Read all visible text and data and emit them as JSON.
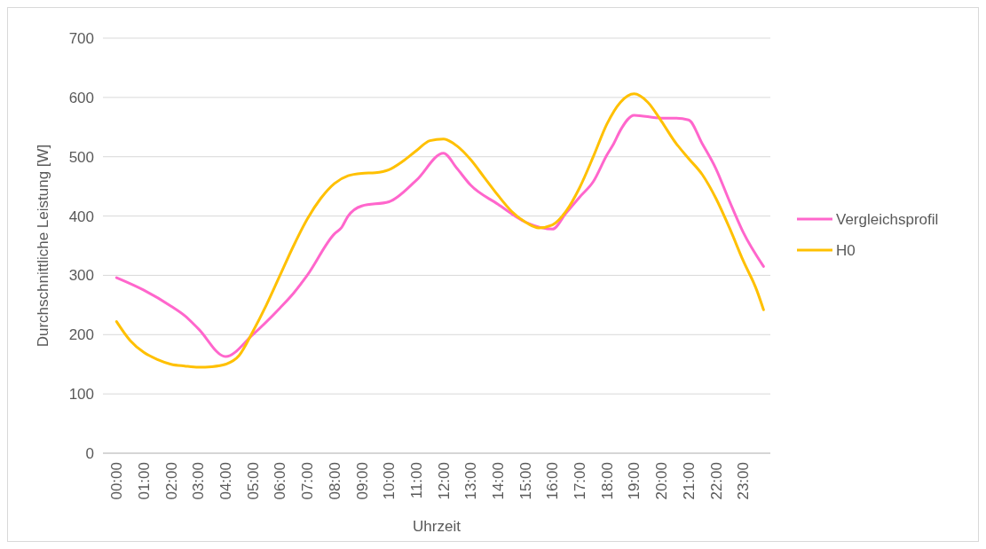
{
  "chart_data": {
    "type": "line",
    "xlabel": "Uhrzeit",
    "ylabel": "Durchschnittliche Leistung [W]",
    "xlim": [
      -0.5,
      24
    ],
    "xticks": [
      {
        "value": 0,
        "label": "00:00"
      },
      {
        "value": 1,
        "label": "01:00"
      },
      {
        "value": 2,
        "label": "02:00"
      },
      {
        "value": 3,
        "label": "03:00"
      },
      {
        "value": 4,
        "label": "04:00"
      },
      {
        "value": 5,
        "label": "05:00"
      },
      {
        "value": 6,
        "label": "06:00"
      },
      {
        "value": 7,
        "label": "07:00"
      },
      {
        "value": 8,
        "label": "08:00"
      },
      {
        "value": 9,
        "label": "09:00"
      },
      {
        "value": 10,
        "label": "10:00"
      },
      {
        "value": 11,
        "label": "11:00"
      },
      {
        "value": 12,
        "label": "12:00"
      },
      {
        "value": 13,
        "label": "13:00"
      },
      {
        "value": 14,
        "label": "14:00"
      },
      {
        "value": 15,
        "label": "15:00"
      },
      {
        "value": 16,
        "label": "16:00"
      },
      {
        "value": 17,
        "label": "17:00"
      },
      {
        "value": 18,
        "label": "18:00"
      },
      {
        "value": 19,
        "label": "19:00"
      },
      {
        "value": 20,
        "label": "20:00"
      },
      {
        "value": 21,
        "label": "21:00"
      },
      {
        "value": 22,
        "label": "22:00"
      },
      {
        "value": 23,
        "label": "23:00"
      }
    ],
    "ylim": [
      0,
      700
    ],
    "yticks": [
      0,
      100,
      200,
      300,
      400,
      500,
      600,
      700
    ],
    "grid": "y",
    "legend": "right",
    "marker": "none",
    "line_style": "solid",
    "series": [
      {
        "name": "Vergleichsprofil",
        "color": "#ff66cc",
        "x": [
          0,
          1,
          2,
          2.5,
          3,
          4,
          5,
          6,
          6.5,
          7,
          8,
          8.25,
          8.5,
          9,
          10,
          11,
          12,
          12.5,
          13,
          14,
          15,
          16,
          16.5,
          17,
          17.5,
          18,
          18.25,
          18.5,
          19,
          20,
          20.5,
          21,
          21.5,
          22,
          22.5,
          23,
          23.75
        ],
        "values": [
          296,
          275,
          248,
          232,
          210,
          163,
          200,
          245,
          270,
          300,
          370,
          380,
          400,
          417,
          424,
          460,
          506,
          480,
          452,
          420,
          390,
          378,
          405,
          432,
          458,
          503,
          522,
          545,
          570,
          565,
          565,
          562,
          522,
          480,
          425,
          373,
          315
        ]
      },
      {
        "name": "H0",
        "color": "#ffc000",
        "x": [
          0,
          0.5,
          1,
          1.5,
          2,
          2.5,
          3,
          3.5,
          4,
          4.5,
          5,
          5.5,
          6,
          6.5,
          7,
          7.5,
          8,
          8.5,
          9,
          9.5,
          10,
          10.5,
          11,
          11.5,
          12,
          12.5,
          13,
          13.5,
          14,
          14.5,
          15,
          15.5,
          16,
          16.5,
          17,
          17.5,
          18,
          18.5,
          19,
          19.5,
          20,
          20.5,
          21,
          21.5,
          22,
          22.5,
          23,
          23.5,
          23.75
        ],
        "values": [
          222,
          190,
          170,
          158,
          150,
          147,
          145,
          146,
          150,
          165,
          205,
          250,
          300,
          350,
          395,
          430,
          455,
          468,
          472,
          473,
          478,
          492,
          510,
          527,
          530,
          518,
          495,
          465,
          435,
          408,
          390,
          380,
          385,
          408,
          448,
          500,
          555,
          592,
          606,
          592,
          560,
          525,
          497,
          470,
          430,
          380,
          325,
          275,
          242
        ]
      }
    ]
  }
}
